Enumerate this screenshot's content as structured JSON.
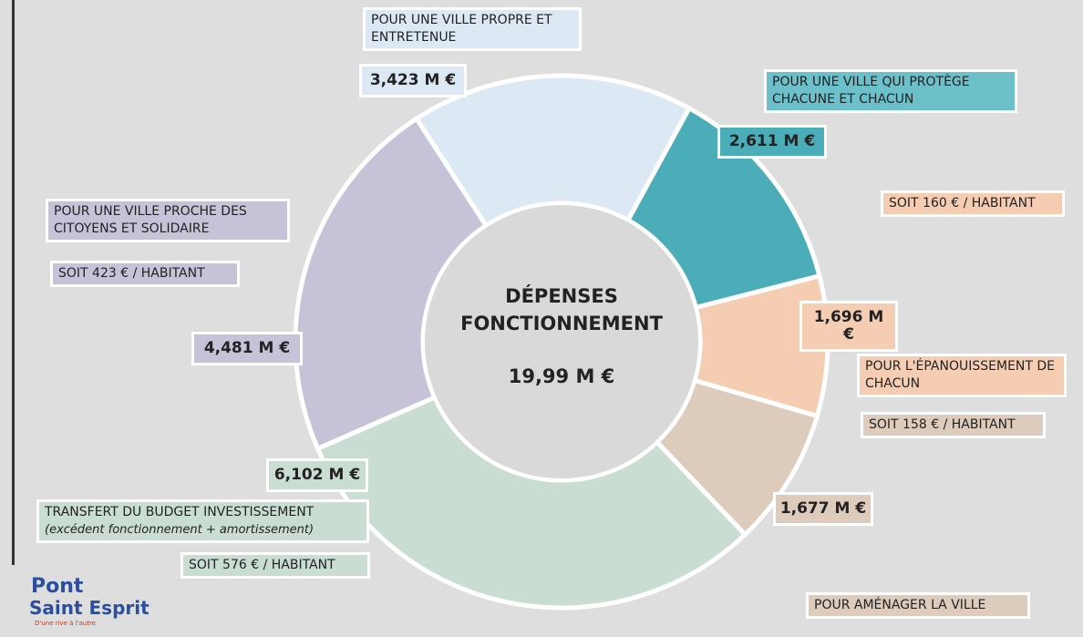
{
  "chart_data": {
    "type": "donut",
    "title": "DÉPENSES FONCTIONNEMENT",
    "total_label": "19,99 M €",
    "categories": [
      "POUR UNE VILLE PROPRE ET ENTRETENUE",
      "POUR UNE VILLE QUI PROTÈGE CHACUNE ET CHACUN",
      "POUR L'ÉPANOUISSEMENT DE CHACUN",
      "POUR AMÉNAGER LA VILLE",
      "TRANSFERT DU BUDGET INVESTISSEMENT",
      "POUR UNE VILLE PROCHE DES CITOYENS ET SOLIDAIRE"
    ],
    "category_note": "(excédent fonctionnement + amortissement)",
    "values": [
      3.423,
      2.611,
      1.696,
      1.677,
      6.102,
      4.481
    ],
    "value_labels": [
      "3,423 M €",
      "2,611 M €",
      "1,696 M €",
      "1,677 M €",
      "6,102 M €",
      "4,481 M €"
    ],
    "colors": [
      "#dce9f5",
      "#4aadb8",
      "#f5cdb2",
      "#ddcbbb",
      "#c9ddd3",
      "#c6c3d9"
    ],
    "annotations": [
      "SOIT 423 € / HABITANT",
      "SOIT 160 € / HABITANT",
      "SOIT 158 € / HABITANT",
      "SOIT 576 € / HABITANT"
    ]
  },
  "logo": {
    "line1": "Pont",
    "line2": "Saint Esprit",
    "tagline": "D'une rive à l'autre"
  }
}
